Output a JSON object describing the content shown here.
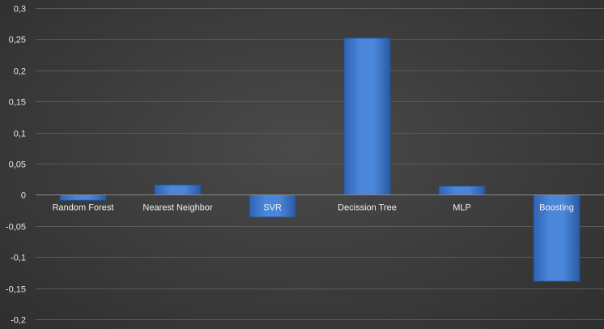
{
  "chart_data": {
    "type": "bar",
    "categories": [
      "Random Forest",
      "Nearest Neighbor",
      "SVR",
      "Decission Tree",
      "MLP",
      "Boosting"
    ],
    "values": [
      -0.009,
      0.016,
      -0.036,
      0.252,
      0.014,
      -0.139
    ],
    "ylim": [
      -0.2,
      0.3
    ],
    "ytick_labels": [
      "0,3",
      "0,25",
      "0,2",
      "0,15",
      "0,1",
      "0,05",
      "0",
      "-0,05",
      "-0,1",
      "-0,15",
      "-0,2"
    ],
    "ytick_values": [
      0.3,
      0.25,
      0.2,
      0.15,
      0.1,
      0.05,
      0,
      -0.05,
      -0.1,
      -0.15,
      -0.2
    ],
    "grid": true,
    "legend": "none",
    "colors": {
      "bar_fill": "#3f7ad0",
      "bar_dark": "#2a5aa3",
      "background": "#3b3b3b",
      "gridline": "#5a5a5a",
      "text": "#e6e6e6"
    }
  }
}
